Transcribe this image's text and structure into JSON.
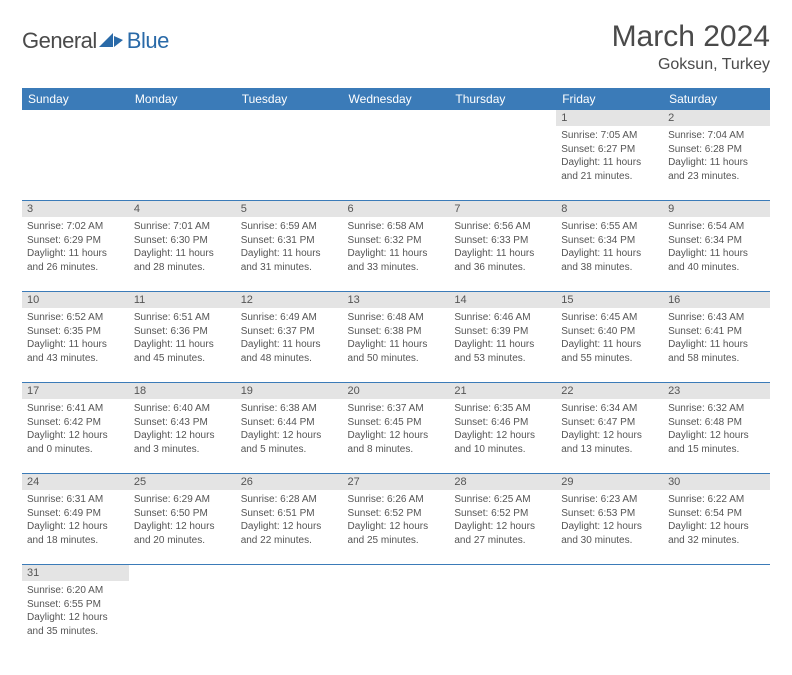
{
  "logo": {
    "general": "General",
    "blue": "Blue"
  },
  "title": "March 2024",
  "location": "Goksun, Turkey",
  "colors": {
    "header_bg": "#3b7bb8",
    "header_text": "#ffffff",
    "daynum_bg": "#e4e4e4",
    "text": "#555555",
    "rule": "#3b7bb8"
  },
  "weekdays": [
    "Sunday",
    "Monday",
    "Tuesday",
    "Wednesday",
    "Thursday",
    "Friday",
    "Saturday"
  ],
  "weeks": [
    [
      null,
      null,
      null,
      null,
      null,
      {
        "n": "1",
        "sr": "Sunrise: 7:05 AM",
        "ss": "Sunset: 6:27 PM",
        "d1": "Daylight: 11 hours",
        "d2": "and 21 minutes."
      },
      {
        "n": "2",
        "sr": "Sunrise: 7:04 AM",
        "ss": "Sunset: 6:28 PM",
        "d1": "Daylight: 11 hours",
        "d2": "and 23 minutes."
      }
    ],
    [
      {
        "n": "3",
        "sr": "Sunrise: 7:02 AM",
        "ss": "Sunset: 6:29 PM",
        "d1": "Daylight: 11 hours",
        "d2": "and 26 minutes."
      },
      {
        "n": "4",
        "sr": "Sunrise: 7:01 AM",
        "ss": "Sunset: 6:30 PM",
        "d1": "Daylight: 11 hours",
        "d2": "and 28 minutes."
      },
      {
        "n": "5",
        "sr": "Sunrise: 6:59 AM",
        "ss": "Sunset: 6:31 PM",
        "d1": "Daylight: 11 hours",
        "d2": "and 31 minutes."
      },
      {
        "n": "6",
        "sr": "Sunrise: 6:58 AM",
        "ss": "Sunset: 6:32 PM",
        "d1": "Daylight: 11 hours",
        "d2": "and 33 minutes."
      },
      {
        "n": "7",
        "sr": "Sunrise: 6:56 AM",
        "ss": "Sunset: 6:33 PM",
        "d1": "Daylight: 11 hours",
        "d2": "and 36 minutes."
      },
      {
        "n": "8",
        "sr": "Sunrise: 6:55 AM",
        "ss": "Sunset: 6:34 PM",
        "d1": "Daylight: 11 hours",
        "d2": "and 38 minutes."
      },
      {
        "n": "9",
        "sr": "Sunrise: 6:54 AM",
        "ss": "Sunset: 6:34 PM",
        "d1": "Daylight: 11 hours",
        "d2": "and 40 minutes."
      }
    ],
    [
      {
        "n": "10",
        "sr": "Sunrise: 6:52 AM",
        "ss": "Sunset: 6:35 PM",
        "d1": "Daylight: 11 hours",
        "d2": "and 43 minutes."
      },
      {
        "n": "11",
        "sr": "Sunrise: 6:51 AM",
        "ss": "Sunset: 6:36 PM",
        "d1": "Daylight: 11 hours",
        "d2": "and 45 minutes."
      },
      {
        "n": "12",
        "sr": "Sunrise: 6:49 AM",
        "ss": "Sunset: 6:37 PM",
        "d1": "Daylight: 11 hours",
        "d2": "and 48 minutes."
      },
      {
        "n": "13",
        "sr": "Sunrise: 6:48 AM",
        "ss": "Sunset: 6:38 PM",
        "d1": "Daylight: 11 hours",
        "d2": "and 50 minutes."
      },
      {
        "n": "14",
        "sr": "Sunrise: 6:46 AM",
        "ss": "Sunset: 6:39 PM",
        "d1": "Daylight: 11 hours",
        "d2": "and 53 minutes."
      },
      {
        "n": "15",
        "sr": "Sunrise: 6:45 AM",
        "ss": "Sunset: 6:40 PM",
        "d1": "Daylight: 11 hours",
        "d2": "and 55 minutes."
      },
      {
        "n": "16",
        "sr": "Sunrise: 6:43 AM",
        "ss": "Sunset: 6:41 PM",
        "d1": "Daylight: 11 hours",
        "d2": "and 58 minutes."
      }
    ],
    [
      {
        "n": "17",
        "sr": "Sunrise: 6:41 AM",
        "ss": "Sunset: 6:42 PM",
        "d1": "Daylight: 12 hours",
        "d2": "and 0 minutes."
      },
      {
        "n": "18",
        "sr": "Sunrise: 6:40 AM",
        "ss": "Sunset: 6:43 PM",
        "d1": "Daylight: 12 hours",
        "d2": "and 3 minutes."
      },
      {
        "n": "19",
        "sr": "Sunrise: 6:38 AM",
        "ss": "Sunset: 6:44 PM",
        "d1": "Daylight: 12 hours",
        "d2": "and 5 minutes."
      },
      {
        "n": "20",
        "sr": "Sunrise: 6:37 AM",
        "ss": "Sunset: 6:45 PM",
        "d1": "Daylight: 12 hours",
        "d2": "and 8 minutes."
      },
      {
        "n": "21",
        "sr": "Sunrise: 6:35 AM",
        "ss": "Sunset: 6:46 PM",
        "d1": "Daylight: 12 hours",
        "d2": "and 10 minutes."
      },
      {
        "n": "22",
        "sr": "Sunrise: 6:34 AM",
        "ss": "Sunset: 6:47 PM",
        "d1": "Daylight: 12 hours",
        "d2": "and 13 minutes."
      },
      {
        "n": "23",
        "sr": "Sunrise: 6:32 AM",
        "ss": "Sunset: 6:48 PM",
        "d1": "Daylight: 12 hours",
        "d2": "and 15 minutes."
      }
    ],
    [
      {
        "n": "24",
        "sr": "Sunrise: 6:31 AM",
        "ss": "Sunset: 6:49 PM",
        "d1": "Daylight: 12 hours",
        "d2": "and 18 minutes."
      },
      {
        "n": "25",
        "sr": "Sunrise: 6:29 AM",
        "ss": "Sunset: 6:50 PM",
        "d1": "Daylight: 12 hours",
        "d2": "and 20 minutes."
      },
      {
        "n": "26",
        "sr": "Sunrise: 6:28 AM",
        "ss": "Sunset: 6:51 PM",
        "d1": "Daylight: 12 hours",
        "d2": "and 22 minutes."
      },
      {
        "n": "27",
        "sr": "Sunrise: 6:26 AM",
        "ss": "Sunset: 6:52 PM",
        "d1": "Daylight: 12 hours",
        "d2": "and 25 minutes."
      },
      {
        "n": "28",
        "sr": "Sunrise: 6:25 AM",
        "ss": "Sunset: 6:52 PM",
        "d1": "Daylight: 12 hours",
        "d2": "and 27 minutes."
      },
      {
        "n": "29",
        "sr": "Sunrise: 6:23 AM",
        "ss": "Sunset: 6:53 PM",
        "d1": "Daylight: 12 hours",
        "d2": "and 30 minutes."
      },
      {
        "n": "30",
        "sr": "Sunrise: 6:22 AM",
        "ss": "Sunset: 6:54 PM",
        "d1": "Daylight: 12 hours",
        "d2": "and 32 minutes."
      }
    ],
    [
      {
        "n": "31",
        "sr": "Sunrise: 6:20 AM",
        "ss": "Sunset: 6:55 PM",
        "d1": "Daylight: 12 hours",
        "d2": "and 35 minutes."
      },
      null,
      null,
      null,
      null,
      null,
      null
    ]
  ]
}
